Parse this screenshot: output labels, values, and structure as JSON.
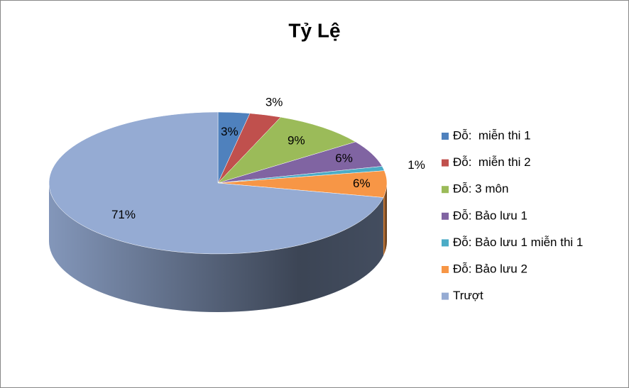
{
  "chart_data": {
    "type": "pie",
    "title": "Tỷ Lệ",
    "categories": [
      "Đỗ:  miễn thi 1",
      "Đỗ:  miễn thi 2",
      "Đỗ: 3 môn",
      "Đỗ: Bảo lưu 1",
      "Đỗ: Bảo lưu 1 miễn thi 1",
      "Đỗ: Bảo lưu 2",
      "Trượt"
    ],
    "values": [
      3,
      3,
      9,
      6,
      1,
      6,
      71
    ],
    "value_labels": [
      "3%",
      "3%",
      "9%",
      "6%",
      "1%",
      "6%",
      "71%"
    ],
    "colors": [
      "#4f81bd",
      "#c0504d",
      "#9bbb59",
      "#8064a2",
      "#4bacc6",
      "#f79646",
      "#95abd3"
    ],
    "legend": "right"
  }
}
